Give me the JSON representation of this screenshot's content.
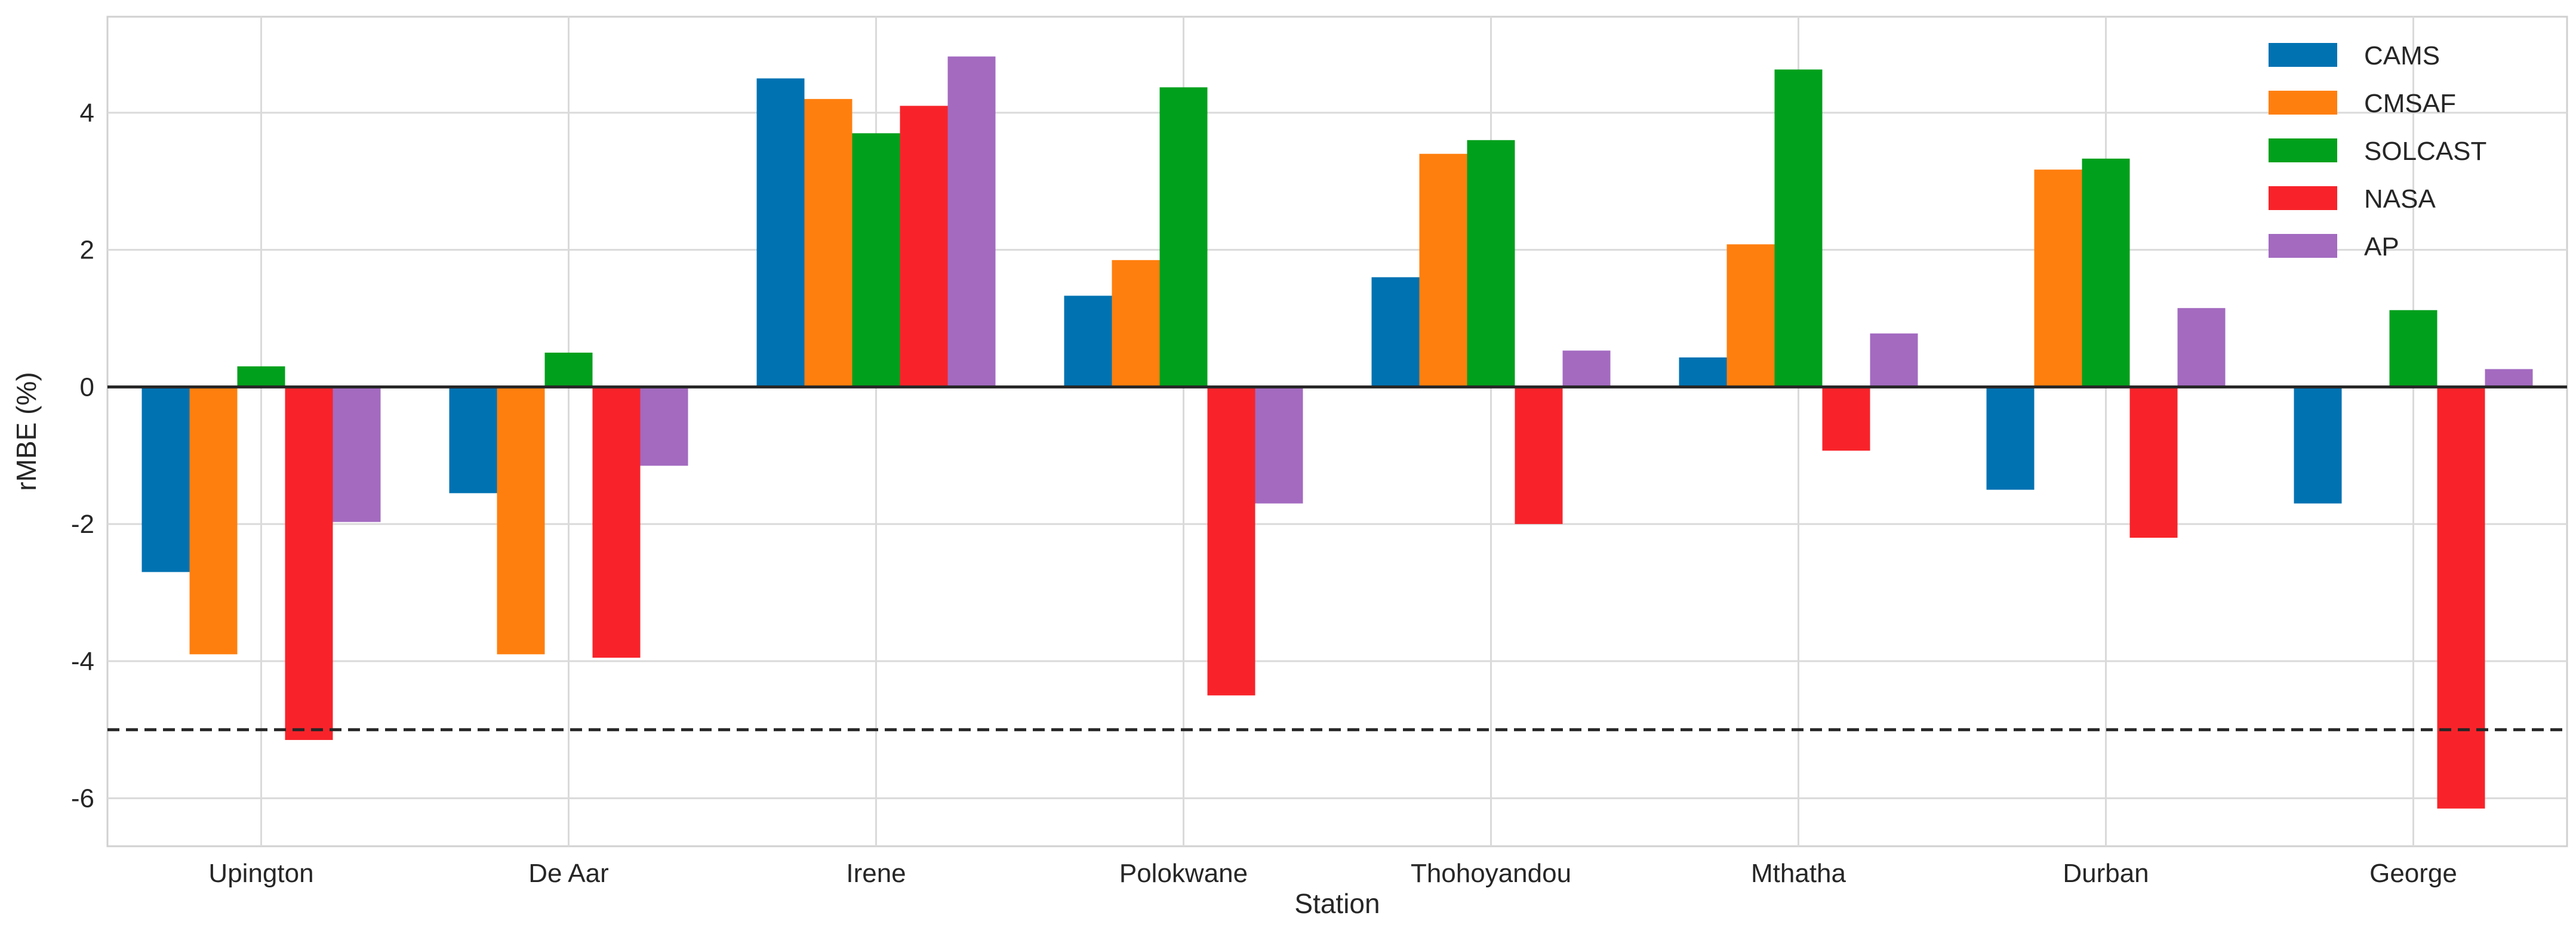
{
  "chart_data": {
    "type": "bar",
    "title": "",
    "xlabel": "Station",
    "ylabel": "rMBE (%)",
    "ylim": [
      -6.7,
      5.4
    ],
    "yticks": [
      -6,
      -4,
      -2,
      0,
      2,
      4
    ],
    "grid": true,
    "legend_position": "top-right",
    "reference_line": {
      "y": -5,
      "style": "dashed"
    },
    "categories": [
      "Upington",
      "De Aar",
      "Irene",
      "Polokwane",
      "Thohoyandou",
      "Mthatha",
      "Durban",
      "George"
    ],
    "series": [
      {
        "name": "CAMS",
        "color": "#0072b2",
        "values": [
          -2.7,
          -1.55,
          4.5,
          1.33,
          1.6,
          0.43,
          -1.5,
          -1.7
        ]
      },
      {
        "name": "CMSAF",
        "color": "#ff7f0e",
        "values": [
          -3.9,
          -3.9,
          4.2,
          1.85,
          3.4,
          2.08,
          3.17,
          null
        ]
      },
      {
        "name": "SOLCAST",
        "color": "#00a01c",
        "values": [
          0.3,
          0.5,
          3.7,
          4.37,
          3.6,
          4.63,
          3.33,
          1.12
        ]
      },
      {
        "name": "NASA",
        "color": "#f8232a",
        "values": [
          -5.15,
          -3.95,
          4.1,
          -4.5,
          -2.0,
          -0.93,
          -2.2,
          -6.15
        ]
      },
      {
        "name": "AP",
        "color": "#a36ac0",
        "values": [
          -1.97,
          -1.15,
          4.82,
          -1.7,
          0.53,
          0.78,
          1.15,
          0.26
        ]
      }
    ]
  }
}
